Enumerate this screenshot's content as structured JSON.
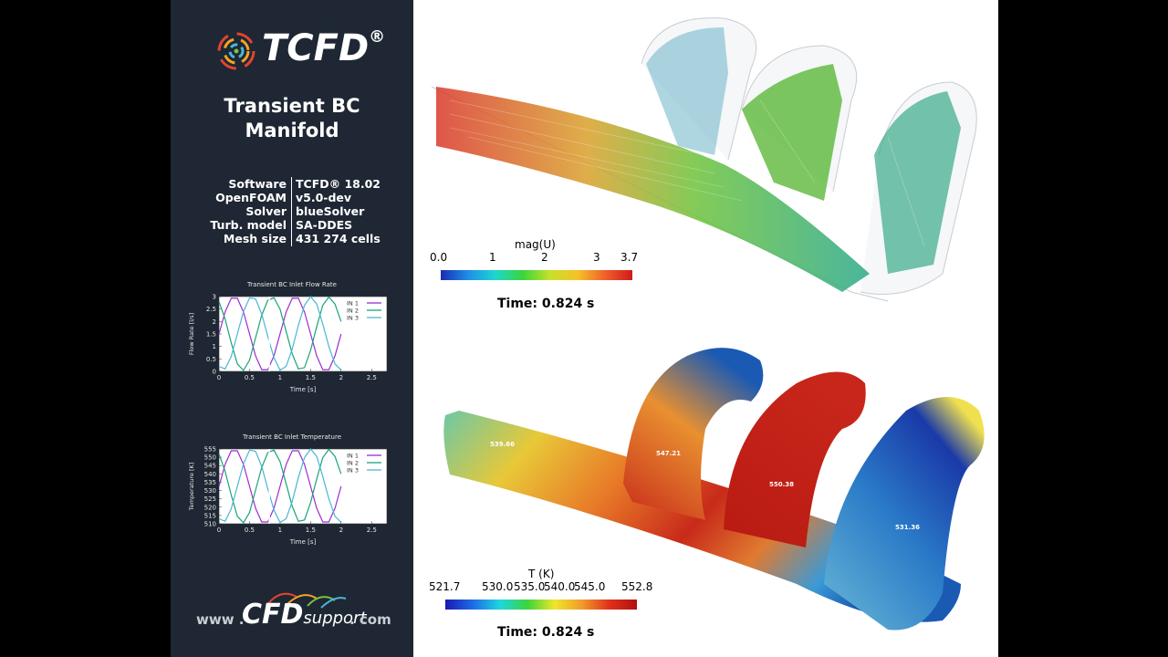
{
  "logo": {
    "brand": "TCFD",
    "registered": "®"
  },
  "title": {
    "line1": "Transient BC",
    "line2": "Manifold"
  },
  "specs": [
    {
      "label": "Software",
      "value": "TCFD® 18.02"
    },
    {
      "label": "OpenFOAM",
      "value": "v5.0-dev"
    },
    {
      "label": "Solver",
      "value": "blueSolver"
    },
    {
      "label": "Turb. model",
      "value": "SA-DDES"
    },
    {
      "label": "Mesh size",
      "value": "431 274 cells"
    }
  ],
  "charts": {
    "flow": {
      "title": "Transient BC Inlet Flow Rate",
      "ylabel": "Flow Rate [l/s]",
      "xlabel": "Time [s]",
      "yticks": [
        "0",
        "0.5",
        "1",
        "1.5",
        "2",
        "2.5",
        "3"
      ],
      "xticks": [
        "0",
        "0.5",
        "1",
        "1.5",
        "2",
        "2.5"
      ],
      "legend": [
        "IN 1",
        "IN 2",
        "IN 3"
      ]
    },
    "temp": {
      "title": "Transient BC Inlet Temperature",
      "ylabel": "Temperature [K]",
      "xlabel": "Time [s]",
      "yticks": [
        "510",
        "515",
        "520",
        "525",
        "530",
        "535",
        "540",
        "545",
        "550",
        "555"
      ],
      "xticks": [
        "0",
        "0.5",
        "1",
        "1.5",
        "2",
        "2.5"
      ],
      "legend": [
        "IN 1",
        "IN 2",
        "IN 3"
      ]
    }
  },
  "chart_data": [
    {
      "type": "line",
      "title": "Transient BC Inlet Flow Rate",
      "xlabel": "Time [s]",
      "ylabel": "Flow Rate [l/s]",
      "xlim": [
        0,
        2.75
      ],
      "ylim": [
        0,
        3
      ],
      "marker_time": 0.824,
      "legend": "top-right",
      "series": [
        {
          "name": "IN 1",
          "color": "#9a2bd1",
          "x": [
            0,
            0.1,
            0.2,
            0.3,
            0.4,
            0.5,
            0.6,
            0.7,
            0.8,
            0.9,
            1.0,
            1.1,
            1.2,
            1.3,
            1.4,
            1.5,
            1.6,
            1.7,
            1.8,
            1.9,
            2.0
          ],
          "y": [
            1.5,
            2.38,
            2.93,
            2.93,
            2.38,
            1.5,
            0.62,
            0.07,
            0.07,
            0.62,
            1.5,
            2.38,
            2.93,
            2.93,
            2.38,
            1.5,
            0.62,
            0.07,
            0.07,
            0.62,
            1.5
          ]
        },
        {
          "name": "IN 2",
          "color": "#1aa37a",
          "x": [
            0,
            0.1,
            0.2,
            0.3,
            0.4,
            0.5,
            0.6,
            0.7,
            0.8,
            0.9,
            1.0,
            1.1,
            1.2,
            1.3,
            1.4,
            1.5,
            1.6,
            1.7,
            1.8,
            1.9,
            2.0
          ],
          "y": [
            2.8,
            2.1,
            1.15,
            0.3,
            0.04,
            0.45,
            1.35,
            2.25,
            2.85,
            2.95,
            2.5,
            1.6,
            0.7,
            0.1,
            0.15,
            0.85,
            1.8,
            2.65,
            2.98,
            2.7,
            2.0
          ]
        },
        {
          "name": "IN 3",
          "color": "#4ab6d6",
          "x": [
            0,
            0.1,
            0.2,
            0.3,
            0.4,
            0.5,
            0.6,
            0.7,
            0.8,
            0.9,
            1.0,
            1.1,
            1.2,
            1.3,
            1.4,
            1.5,
            1.6,
            1.7,
            1.8,
            1.9,
            2.0
          ],
          "y": [
            0.2,
            0.1,
            0.6,
            1.5,
            2.4,
            2.95,
            2.9,
            2.3,
            1.4,
            0.55,
            0.05,
            0.2,
            0.9,
            1.85,
            2.65,
            3.0,
            2.7,
            1.9,
            1.0,
            0.3,
            0.05
          ]
        }
      ]
    },
    {
      "type": "line",
      "title": "Transient BC Inlet Temperature",
      "xlabel": "Time [s]",
      "ylabel": "Temperature [K]",
      "xlim": [
        0,
        2.75
      ],
      "ylim": [
        510,
        555
      ],
      "marker_time": 0.824,
      "legend": "top-right",
      "series": [
        {
          "name": "IN 1",
          "color": "#9a2bd1",
          "x": [
            0,
            0.1,
            0.2,
            0.3,
            0.4,
            0.5,
            0.6,
            0.7,
            0.8,
            0.9,
            1.0,
            1.1,
            1.2,
            1.3,
            1.4,
            1.5,
            1.6,
            1.7,
            1.8,
            1.9,
            2.0
          ],
          "y": [
            532.5,
            545.7,
            553.9,
            553.9,
            545.7,
            532.5,
            519.3,
            511.1,
            511.1,
            519.3,
            532.5,
            545.7,
            553.9,
            553.9,
            545.7,
            532.5,
            519.3,
            511.1,
            511.1,
            519.3,
            532.5
          ]
        },
        {
          "name": "IN 2",
          "color": "#1aa37a",
          "x": [
            0,
            0.1,
            0.2,
            0.3,
            0.4,
            0.5,
            0.6,
            0.7,
            0.8,
            0.9,
            1.0,
            1.1,
            1.2,
            1.3,
            1.4,
            1.5,
            1.6,
            1.7,
            1.8,
            1.9,
            2.0
          ],
          "y": [
            552,
            541.5,
            527.3,
            514.5,
            510.6,
            516.8,
            530.3,
            543.8,
            552.8,
            554.3,
            547.5,
            534,
            520.5,
            511.5,
            512.3,
            522.8,
            537,
            549.8,
            554.7,
            550.5,
            540
          ]
        },
        {
          "name": "IN 3",
          "color": "#4ab6d6",
          "x": [
            0,
            0.1,
            0.2,
            0.3,
            0.4,
            0.5,
            0.6,
            0.7,
            0.8,
            0.9,
            1.0,
            1.1,
            1.2,
            1.3,
            1.4,
            1.5,
            1.6,
            1.7,
            1.8,
            1.9,
            2.0
          ],
          "y": [
            513,
            511.5,
            519,
            532.5,
            546,
            554.3,
            553.5,
            544.5,
            531,
            518.3,
            510.8,
            513,
            523.5,
            537.8,
            549.8,
            555,
            550.5,
            538.5,
            525,
            514.5,
            510.8
          ]
        }
      ]
    }
  ],
  "colorbar_u": {
    "title": "mag(U)",
    "ticks": [
      "0.0",
      "1",
      "2",
      "3",
      "3.7"
    ],
    "tick_values": [
      0,
      1,
      2,
      3,
      3.7
    ],
    "range": [
      0,
      3.7
    ]
  },
  "colorbar_t": {
    "title": "T (K)",
    "ticks": [
      "521.7",
      "530.0",
      "535.0",
      "540.0",
      "545.0",
      "552.8"
    ],
    "tick_values": [
      521.7,
      530.0,
      535.0,
      540.0,
      545.0,
      552.8
    ],
    "range": [
      521.7,
      552.8
    ]
  },
  "time_top": "Time: 0.824 s",
  "time_bottom": "Time: 0.824 s",
  "probes": [
    "539.66",
    "547.21",
    "550.38",
    "531.36"
  ],
  "footer": {
    "www": "www .",
    "brand": "CFD",
    "support": "support",
    "com": ". com"
  }
}
